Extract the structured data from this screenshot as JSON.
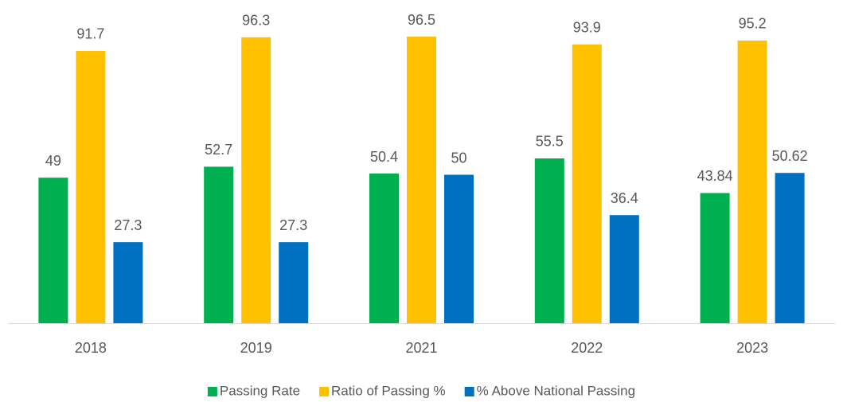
{
  "chart_data": {
    "type": "bar",
    "categories": [
      "2018",
      "2019",
      "2021",
      "2022",
      "2023"
    ],
    "series": [
      {
        "name": "Passing Rate",
        "color": "#00b050",
        "values": [
          49,
          52.7,
          50.4,
          55.5,
          43.84
        ]
      },
      {
        "name": "Ratio of Passing %",
        "color": "#ffc000",
        "values": [
          91.7,
          96.3,
          96.5,
          93.9,
          95.2
        ]
      },
      {
        "name": "% Above National Passing",
        "color": "#0070c0",
        "values": [
          27.3,
          27.3,
          50,
          36.4,
          50.62
        ]
      }
    ],
    "ylim": [
      0,
      100
    ],
    "legend": "bottom"
  }
}
